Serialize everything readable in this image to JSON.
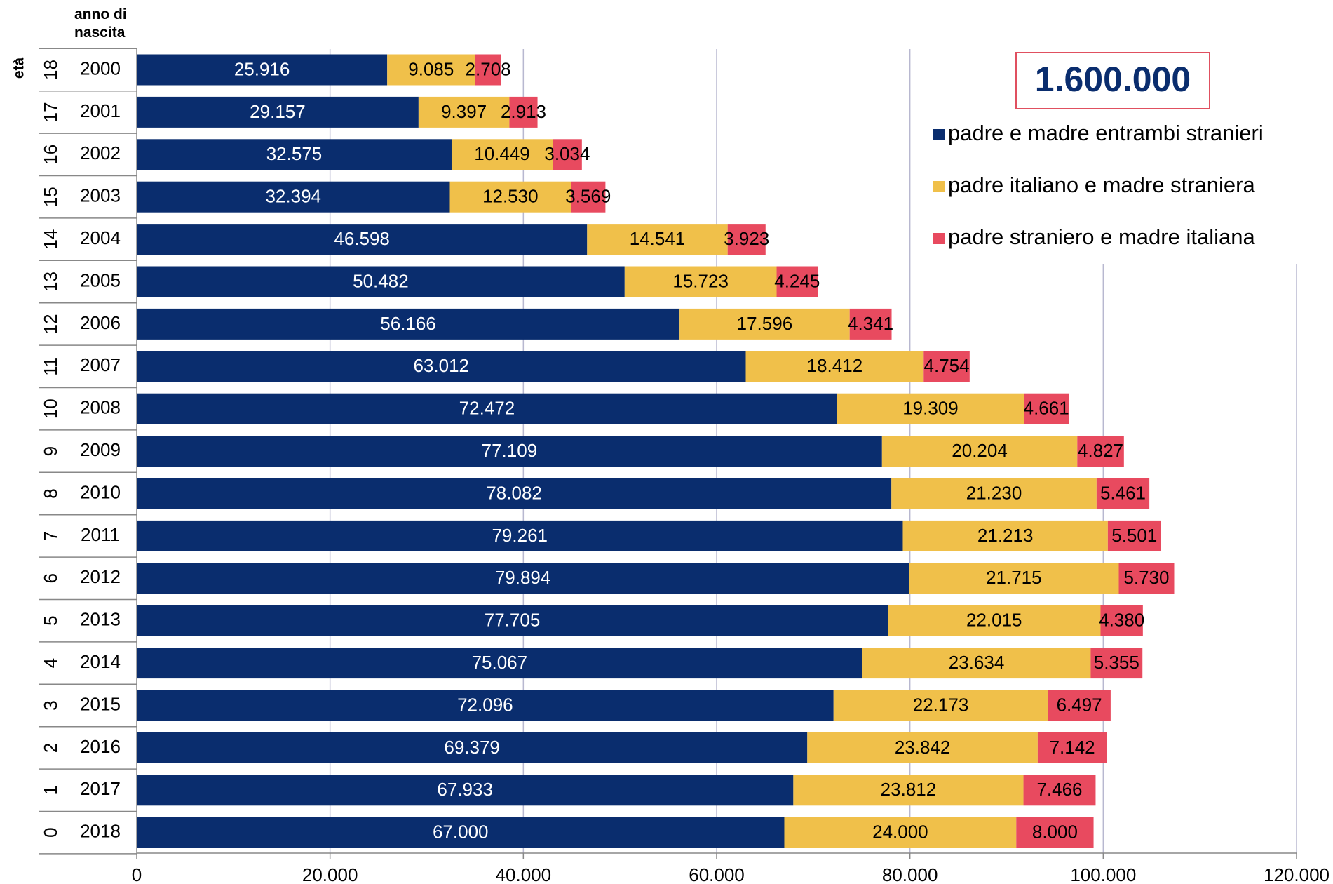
{
  "chart_data": {
    "type": "stacked_bar_horizontal",
    "annotation": "1.600.000",
    "y_label": "età",
    "y2_label": "anno di nascita",
    "categories": [
      "18",
      "17",
      "16",
      "15",
      "14",
      "13",
      "12",
      "11",
      "10",
      "9",
      "8",
      "7",
      "6",
      "5",
      "4",
      "3",
      "2",
      "1",
      "0"
    ],
    "categories_year": [
      "2000",
      "2001",
      "2002",
      "2003",
      "2004",
      "2005",
      "2006",
      "2007",
      "2008",
      "2009",
      "2010",
      "2011",
      "2012",
      "2013",
      "2014",
      "2015",
      "2016",
      "2017",
      "2018"
    ],
    "series": [
      {
        "name": "padre e madre entrambi stranieri",
        "color": "#0a2d6e",
        "label_color": "#ffffff",
        "values": [
          25916,
          29157,
          32575,
          32394,
          46598,
          50482,
          56166,
          63012,
          72472,
          77109,
          78082,
          79261,
          79894,
          77705,
          75067,
          72096,
          69379,
          67933,
          67000
        ],
        "value_labels": [
          "25.916",
          "29.157",
          "32.575",
          "32.394",
          "46.598",
          "50.482",
          "56.166",
          "63.012",
          "72.472",
          "77.109",
          "78.082",
          "79.261",
          "79.894",
          "77.705",
          "75.067",
          "72.096",
          "69.379",
          "67.933",
          "67.000"
        ]
      },
      {
        "name": "padre italiano e madre straniera",
        "color": "#f0c04a",
        "label_color": "#000000",
        "values": [
          9085,
          9397,
          10449,
          12530,
          14541,
          15723,
          17596,
          18412,
          19309,
          20204,
          21230,
          21213,
          21715,
          22015,
          23634,
          22173,
          23842,
          23812,
          24000
        ],
        "value_labels": [
          "9.085",
          "9.397",
          "10.449",
          "12.530",
          "14.541",
          "15.723",
          "17.596",
          "18.412",
          "19.309",
          "20.204",
          "21.230",
          "21.213",
          "21.715",
          "22.015",
          "23.634",
          "22.173",
          "23.842",
          "23.812",
          "24.000"
        ]
      },
      {
        "name": "padre straniero e madre italiana",
        "color": "#e84a5f",
        "label_color": "#000000",
        "values": [
          2708,
          2913,
          3034,
          3569,
          3923,
          4245,
          4341,
          4754,
          4661,
          4827,
          5461,
          5501,
          5730,
          4380,
          5355,
          6497,
          7142,
          7466,
          8000
        ],
        "value_labels": [
          "2.708",
          "2.913",
          "3.034",
          "3.569",
          "3.923",
          "4.245",
          "4.341",
          "4.754",
          "4.661",
          "4.827",
          "5.461",
          "5.501",
          "5.730",
          "4.380",
          "5.355",
          "6.497",
          "7.142",
          "7.466",
          "8.000"
        ]
      }
    ],
    "xlim": [
      0,
      120000
    ],
    "xticks": [
      0,
      {
        "value": 20000,
        "label": "20.000"
      },
      {
        "value": 40000,
        "label": "40.000"
      },
      {
        "value": 60000,
        "label": "60.000"
      },
      {
        "value": 80000,
        "label": "80.000"
      },
      {
        "value": 100000,
        "label": "100.000"
      },
      {
        "value": 120000,
        "label": "120.000"
      }
    ],
    "grid": true
  }
}
